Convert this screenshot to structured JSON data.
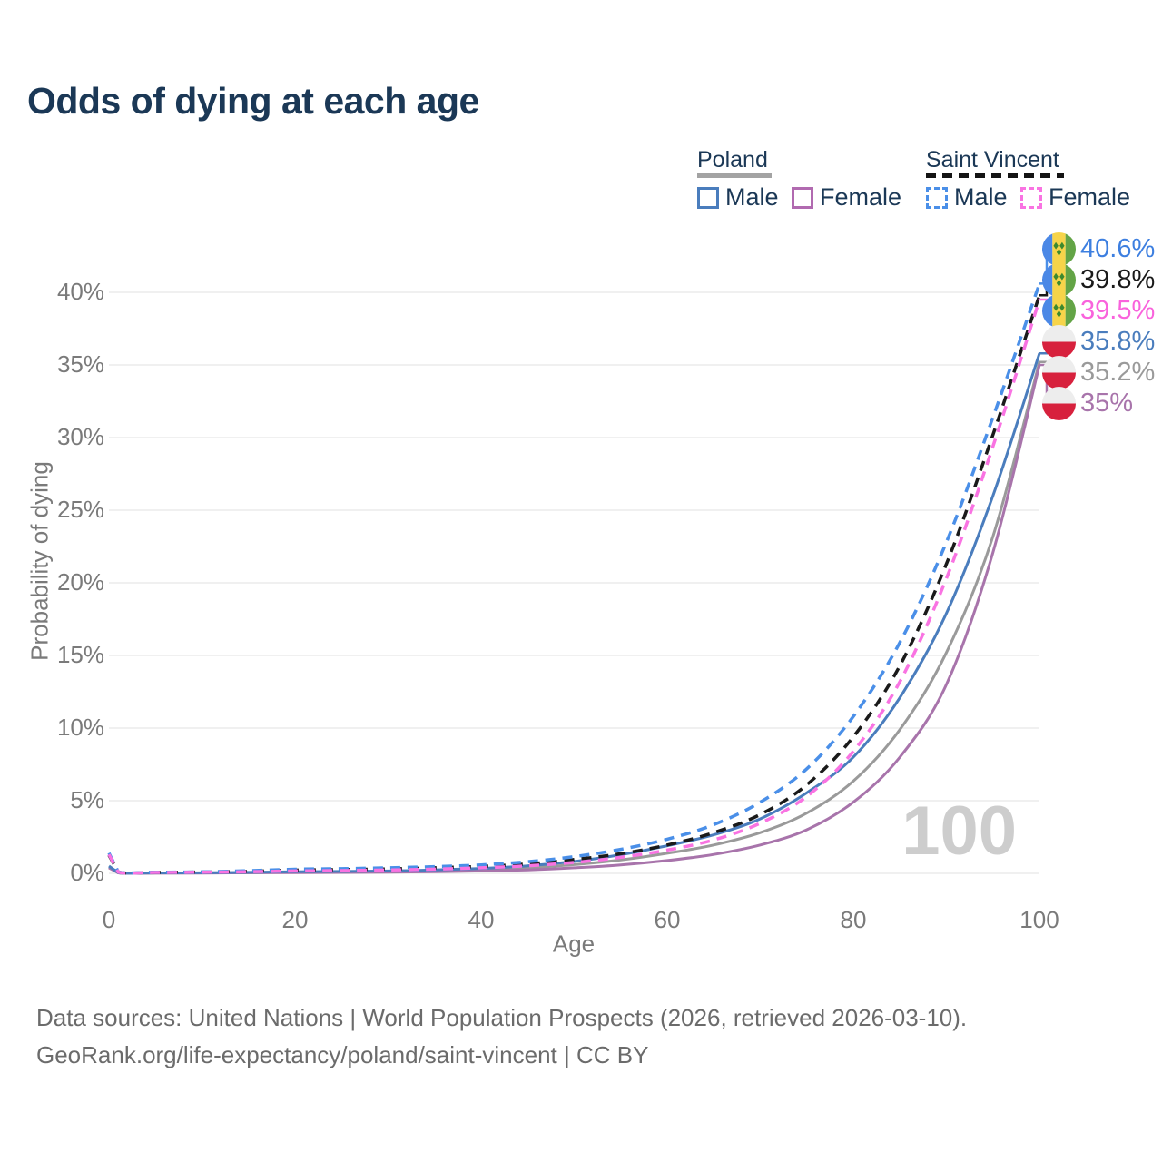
{
  "title": "Odds of dying at each age",
  "legend": {
    "groups": [
      {
        "name": "Poland",
        "line_style": "solid",
        "underline_color": "#a3a3a3",
        "items": [
          {
            "label": "Male",
            "color": "#4a7dbd"
          },
          {
            "label": "Female",
            "color": "#b16ab0"
          }
        ]
      },
      {
        "name": "Saint Vincent",
        "line_style": "dashed",
        "underline_color": "#141414",
        "items": [
          {
            "label": "Male",
            "color": "#4a8fe8"
          },
          {
            "label": "Female",
            "color": "#f973e2"
          }
        ]
      }
    ]
  },
  "chart_data": {
    "type": "line",
    "title": "Odds of dying at each age",
    "xlabel": "Age",
    "ylabel": "Probability of dying",
    "xlim": [
      0,
      100
    ],
    "ylim_percent": [
      0,
      43
    ],
    "xticks": [
      0,
      20,
      40,
      60,
      80,
      100
    ],
    "yticks_percent": [
      0,
      5,
      10,
      15,
      20,
      25,
      30,
      35,
      40
    ],
    "grid": "horizontal-only",
    "watermark": "100",
    "ages": [
      0,
      1,
      5,
      10,
      15,
      20,
      25,
      30,
      35,
      40,
      45,
      50,
      55,
      60,
      65,
      70,
      75,
      80,
      85,
      90,
      95,
      100
    ],
    "series": [
      {
        "id": "sv-male",
        "country": "Saint Vincent",
        "sex": "Male",
        "dash": true,
        "color": "#4a8fe8",
        "label_color": "#3d7fe0",
        "end_label": "40.6%",
        "flag": "saint-vincent",
        "values_percent": [
          1.4,
          0.1,
          0.08,
          0.1,
          0.18,
          0.28,
          0.32,
          0.38,
          0.46,
          0.58,
          0.8,
          1.15,
          1.65,
          2.35,
          3.35,
          4.9,
          7.2,
          10.8,
          15.9,
          22.8,
          31.4,
          40.6
        ]
      },
      {
        "id": "sv-total",
        "country": "Saint Vincent",
        "sex": "",
        "dash": true,
        "color": "#1a1a1a",
        "label_color": "#1a1a1a",
        "end_label": "39.8%",
        "flag": "saint-vincent",
        "values_percent": [
          1.25,
          0.09,
          0.07,
          0.09,
          0.14,
          0.22,
          0.26,
          0.3,
          0.38,
          0.48,
          0.65,
          0.95,
          1.35,
          1.95,
          2.8,
          4.05,
          6.1,
          9.4,
          14.3,
          21.3,
          30.2,
          39.8
        ]
      },
      {
        "id": "sv-female",
        "country": "Saint Vincent",
        "sex": "Female",
        "dash": true,
        "color": "#f973e2",
        "label_color": "#f963dc",
        "end_label": "39.5%",
        "flag": "saint-vincent",
        "values_percent": [
          1.3,
          0.08,
          0.06,
          0.08,
          0.11,
          0.16,
          0.19,
          0.23,
          0.29,
          0.38,
          0.52,
          0.75,
          1.1,
          1.6,
          2.3,
          3.45,
          5.3,
          8.4,
          13.2,
          20.3,
          29.4,
          39.5
        ]
      },
      {
        "id": "pl-male",
        "country": "Poland",
        "sex": "Male",
        "dash": false,
        "color": "#4a7dbd",
        "label_color": "#4a7dbd",
        "end_label": "35.8%",
        "flag": "poland",
        "values_percent": [
          0.5,
          0.04,
          0.03,
          0.04,
          0.07,
          0.11,
          0.13,
          0.16,
          0.23,
          0.34,
          0.52,
          0.82,
          1.28,
          1.9,
          2.65,
          3.75,
          5.55,
          8.0,
          12.1,
          17.9,
          26.0,
          35.8
        ]
      },
      {
        "id": "pl-total",
        "country": "Poland",
        "sex": "",
        "dash": false,
        "color": "#9a9a9a",
        "label_color": "#9a9a9a",
        "end_label": "35.2%",
        "flag": "poland",
        "values_percent": [
          0.42,
          0.03,
          0.02,
          0.03,
          0.05,
          0.08,
          0.1,
          0.12,
          0.17,
          0.25,
          0.38,
          0.6,
          0.92,
          1.38,
          1.95,
          2.8,
          4.15,
          6.35,
          9.9,
          15.2,
          23.2,
          35.2
        ]
      },
      {
        "id": "pl-female",
        "country": "Poland",
        "sex": "Female",
        "dash": false,
        "color": "#a874ab",
        "label_color": "#a874ab",
        "end_label": "35%",
        "flag": "poland",
        "values_percent": [
          0.38,
          0.03,
          0.02,
          0.02,
          0.04,
          0.05,
          0.06,
          0.08,
          0.11,
          0.16,
          0.24,
          0.38,
          0.58,
          0.88,
          1.3,
          1.95,
          3.0,
          4.9,
          8.0,
          13.0,
          22.1,
          35.0
        ]
      }
    ]
  },
  "footer": {
    "line1": "Data sources: United Nations | World Population Prospects (2026, retrieved 2026-03-10).",
    "line2": "GeoRank.org/life-expectancy/poland/saint-vincent | CC BY"
  }
}
